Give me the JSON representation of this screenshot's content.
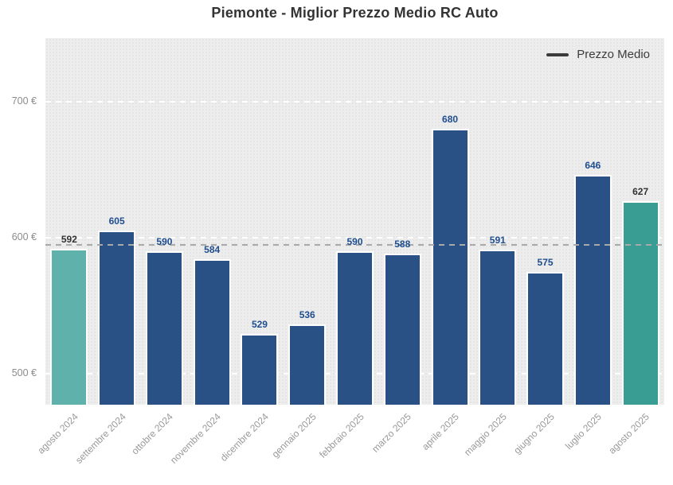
{
  "chart_data": {
    "type": "bar",
    "title": "Piemonte - Miglior Prezzo Medio RC Auto",
    "title_color": "#333333",
    "legend": {
      "label": "Prezzo Medio",
      "line_color": "#3C3C3C",
      "position": "top-right"
    },
    "categories": [
      "agosto 2024",
      "settembre 2024",
      "ottobre 2024",
      "novembre 2024",
      "dicembre 2024",
      "gennaio 2025",
      "febbraio 2025",
      "marzo 2025",
      "aprile 2025",
      "maggio 2025",
      "giugno 2025",
      "luglio 2025",
      "agosto 2025"
    ],
    "values": [
      592,
      605,
      590,
      584,
      529,
      536,
      590,
      588,
      680,
      591,
      575,
      646,
      627
    ],
    "bar_colors": [
      "#5FB2AB",
      "#2A5185",
      "#2A5185",
      "#2A5185",
      "#2A5185",
      "#2A5185",
      "#2A5185",
      "#2A5185",
      "#2A5185",
      "#2A5185",
      "#2A5185",
      "#2A5185",
      "#399D94"
    ],
    "value_label_colors": [
      "#333333",
      "#1F4E8F",
      "#1F4E8F",
      "#1F4E8F",
      "#1F4E8F",
      "#1F4E8F",
      "#1F4E8F",
      "#1F4E8F",
      "#1F4E8F",
      "#1F4E8F",
      "#1F4E8F",
      "#1F4E8F",
      "#333333"
    ],
    "y_axis": {
      "tick_labels": [
        "700 €",
        "600 €",
        "500 €"
      ],
      "tick_values": [
        700,
        600,
        500
      ],
      "ylim": [
        477,
        747
      ],
      "label_color": "#8C8C8C"
    },
    "x_axis": {
      "label_color": "#999999",
      "label_rotation_deg": 45
    },
    "reference_line": {
      "value": 595,
      "style": "dashed",
      "color": "#A9A9A9"
    },
    "grid": {
      "style": "dashed",
      "color": "#FFFFFF"
    },
    "plot_background": "#EDEDED"
  }
}
